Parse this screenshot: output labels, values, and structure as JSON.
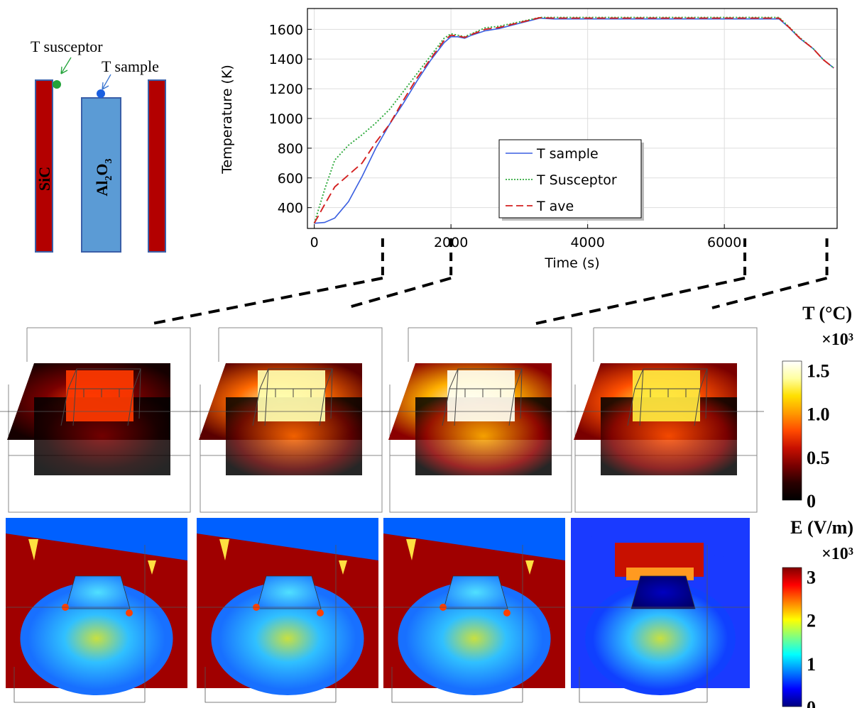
{
  "schematic": {
    "label_susceptor": "T susceptor",
    "label_sample": "T sample",
    "label_sic": "SiC",
    "label_al2o3_main": "Al",
    "label_al2o3_sub2": "2",
    "label_al2o3_o": "O",
    "label_al2o3_sub3": "3",
    "colors": {
      "sic": "#b30000",
      "al2o3": "#5b9bd5",
      "susceptor_dot": "#22a33a",
      "sample_dot": "#1a5fe0"
    }
  },
  "chart_data": {
    "type": "line",
    "title": "",
    "xlabel": "Time (s)",
    "ylabel": "Temperature (K)",
    "xlim": [
      -100,
      7650
    ],
    "ylim": [
      260,
      1740
    ],
    "xticks": [
      0,
      2000,
      4000,
      6000
    ],
    "xtick_labels": [
      "0",
      "2000",
      "4000",
      "6000"
    ],
    "yticks": [
      400,
      600,
      800,
      1000,
      1200,
      1400,
      1600
    ],
    "ytick_labels": [
      "400",
      "600",
      "800",
      "1000",
      "1200",
      "1400",
      "1600"
    ],
    "grid": true,
    "legend_position": "lower-center",
    "series": [
      {
        "name": "T sample",
        "color": "#3a5fe0",
        "style": "solid",
        "x": [
          0,
          150,
          300,
          500,
          700,
          900,
          1100,
          1300,
          1500,
          1700,
          1900,
          2000,
          2100,
          2200,
          2300,
          2500,
          2700,
          3000,
          3300,
          3500,
          4000,
          5000,
          6000,
          6800,
          6950,
          7100,
          7300,
          7450,
          7600
        ],
        "y": [
          295,
          300,
          330,
          440,
          610,
          800,
          960,
          1100,
          1250,
          1390,
          1510,
          1550,
          1550,
          1540,
          1560,
          1590,
          1605,
          1640,
          1675,
          1670,
          1670,
          1670,
          1670,
          1670,
          1610,
          1540,
          1470,
          1395,
          1340
        ]
      },
      {
        "name": "T Susceptor",
        "color": "#2eaa3c",
        "style": "dotted",
        "x": [
          0,
          150,
          300,
          500,
          700,
          900,
          1100,
          1300,
          1500,
          1700,
          1900,
          2000,
          2100,
          2200,
          2300,
          2500,
          2700,
          3000,
          3300,
          3500,
          4000,
          5000,
          6000,
          6800,
          6950,
          7100,
          7300,
          7450,
          7600
        ],
        "y": [
          295,
          520,
          720,
          820,
          890,
          970,
          1060,
          1180,
          1300,
          1420,
          1540,
          1570,
          1560,
          1550,
          1570,
          1610,
          1620,
          1650,
          1680,
          1680,
          1680,
          1680,
          1680,
          1680,
          1615,
          1545,
          1470,
          1395,
          1340
        ]
      },
      {
        "name": "T ave",
        "color": "#d42020",
        "style": "dashed",
        "x": [
          0,
          150,
          300,
          500,
          700,
          900,
          1100,
          1300,
          1500,
          1700,
          1900,
          2000,
          2100,
          2200,
          2300,
          2500,
          2700,
          3000,
          3300,
          3500,
          4000,
          5000,
          6000,
          6800,
          6950,
          7100,
          7300,
          7450,
          7600
        ],
        "y": [
          295,
          420,
          540,
          620,
          700,
          840,
          960,
          1120,
          1270,
          1400,
          1525,
          1560,
          1555,
          1545,
          1565,
          1600,
          1612,
          1645,
          1678,
          1675,
          1675,
          1675,
          1675,
          1675,
          1612,
          1542,
          1470,
          1395,
          1340
        ]
      }
    ]
  },
  "snapshot_times": [
    1000,
    2000,
    6300,
    7500
  ],
  "temp_colorbar": {
    "title": "T (°C)",
    "multiplier": "×10³",
    "ticks": [
      "1.5",
      "1.0",
      "0.5",
      "0"
    ],
    "tick_values": [
      1.5,
      1.0,
      0.5,
      0
    ],
    "max_value": 1.6,
    "stops": [
      "#000000",
      "#2a0000",
      "#7a0000",
      "#c81000",
      "#ff4a00",
      "#ff9a00",
      "#ffe000",
      "#ffffa0",
      "#ffffff"
    ]
  },
  "efield_colorbar": {
    "title": "E (V/m)",
    "multiplier": "×10³",
    "ticks": [
      "3",
      "2",
      "1",
      "0"
    ],
    "tick_values": [
      3,
      2,
      1,
      0
    ],
    "max_value": 3.2,
    "stops": [
      "#00007f",
      "#0000ff",
      "#0080ff",
      "#00ffff",
      "#80ff80",
      "#ffff00",
      "#ff8000",
      "#ff0000",
      "#800000"
    ]
  },
  "temp_panels": [
    {
      "core": "#ff3a00",
      "halo": "#7a0000",
      "bg": "#150000"
    },
    {
      "core": "#ffffb0",
      "halo": "#ff6a00",
      "bg": "#5a0000"
    },
    {
      "core": "#fffff0",
      "halo": "#ffb000",
      "bg": "#8a0000"
    },
    {
      "core": "#ffea40",
      "halo": "#ff5000",
      "bg": "#7a0000"
    }
  ],
  "efield_panels": [
    {
      "bg": "#a00000",
      "lower": "#1870ff",
      "block": "#50e0ff"
    },
    {
      "bg": "#a00000",
      "lower": "#1870ff",
      "block": "#50e0ff"
    },
    {
      "bg": "#a00000",
      "lower": "#1870ff",
      "block": "#50e0ff"
    },
    {
      "bg": "#1a3aff",
      "lower": "#1040ff",
      "block": "#0000c0"
    }
  ]
}
